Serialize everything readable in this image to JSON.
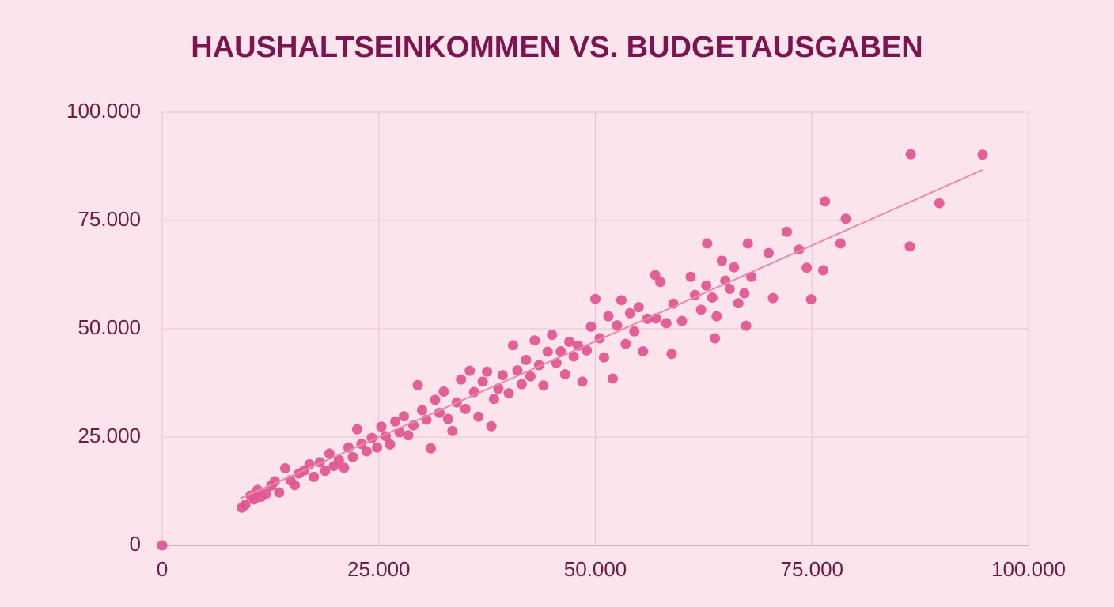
{
  "chart_data": {
    "type": "scatter",
    "title": "HAUSHALTSEINKOMMEN VS. BUDGETAUSGABEN",
    "color": "#e0558f",
    "grid": true,
    "xlim": [
      0,
      100000
    ],
    "ylim": [
      0,
      100000
    ],
    "xticks": [
      0,
      {
        "value": 25000,
        "label": "25.000"
      },
      {
        "value": 50000,
        "label": "50.000"
      },
      {
        "value": 75000,
        "label": "75.000"
      },
      {
        "value": 100000,
        "label": "100.000"
      }
    ],
    "yticks": [
      0,
      {
        "value": 25000,
        "label": "25.000"
      },
      {
        "value": 50000,
        "label": "50.000"
      },
      {
        "value": 75000,
        "label": "75.000"
      },
      {
        "value": 100000,
        "label": "100.000"
      }
    ],
    "x": [
      0,
      9200,
      9600,
      10200,
      10600,
      11000,
      11400,
      12000,
      12600,
      13000,
      13500,
      14200,
      14800,
      15300,
      15800,
      16400,
      17000,
      17500,
      18200,
      18800,
      19300,
      19800,
      20400,
      21000,
      21500,
      22000,
      22500,
      23000,
      23600,
      24200,
      24800,
      25300,
      25800,
      26300,
      26900,
      27400,
      27900,
      28400,
      29000,
      29500,
      30000,
      30500,
      31000,
      31500,
      32000,
      32500,
      33000,
      33500,
      34000,
      34500,
      35000,
      35500,
      36000,
      36500,
      37000,
      37500,
      38000,
      38300,
      38800,
      39300,
      40000,
      40500,
      41000,
      41500,
      42000,
      42500,
      43000,
      43500,
      44000,
      44500,
      45000,
      45500,
      46000,
      46500,
      47000,
      47500,
      48000,
      48500,
      49000,
      49500,
      50000,
      50500,
      51000,
      51500,
      52000,
      52500,
      53000,
      53500,
      54000,
      54500,
      55000,
      55500,
      56000,
      57000,
      57500,
      58200,
      59000,
      60000,
      61000,
      61500,
      62200,
      62800,
      63500,
      64000,
      65000,
      65500,
      66000,
      66500,
      67200,
      68000,
      56900,
      58800,
      62900,
      63800,
      64600,
      67400,
      67600,
      70000,
      70500,
      72100,
      73500,
      74400,
      74900,
      76300,
      76500,
      78300,
      78900,
      86300,
      86400,
      89700,
      94700
    ],
    "y": [
      0,
      8700,
      9400,
      11500,
      10600,
      12800,
      11200,
      11900,
      13800,
      14800,
      12200,
      17800,
      15000,
      13900,
      16600,
      17300,
      18700,
      15800,
      19200,
      17200,
      21200,
      18300,
      19700,
      17900,
      22600,
      20400,
      26800,
      23400,
      21700,
      24800,
      22600,
      27400,
      25200,
      23300,
      28600,
      26100,
      29800,
      25400,
      27700,
      37000,
      31200,
      29000,
      22400,
      33600,
      30600,
      35500,
      29200,
      26400,
      33000,
      38300,
      31500,
      40300,
      35400,
      29700,
      37800,
      40100,
      27500,
      33800,
      36200,
      39300,
      35100,
      46200,
      40400,
      37200,
      42800,
      39000,
      47300,
      41600,
      36900,
      44700,
      48600,
      42100,
      44800,
      39500,
      47000,
      43600,
      46100,
      37800,
      45000,
      50500,
      56900,
      47800,
      43400,
      52900,
      38500,
      50800,
      56600,
      46500,
      53600,
      49400,
      55000,
      44800,
      52300,
      52400,
      60800,
      51300,
      55800,
      51800,
      62000,
      57800,
      54400,
      60000,
      57200,
      52900,
      61100,
      59200,
      64200,
      55900,
      58200,
      62000,
      62400,
      44200,
      69700,
      47800,
      65700,
      50700,
      69700,
      67500,
      57100,
      72400,
      68300,
      64100,
      56800,
      63500,
      79400,
      69700,
      75400,
      69000,
      90300,
      79000,
      90200
    ],
    "trendline": {
      "color": "#e88aad",
      "x": [
        9000,
        94700
      ],
      "y": [
        10800,
        86700
      ]
    }
  }
}
